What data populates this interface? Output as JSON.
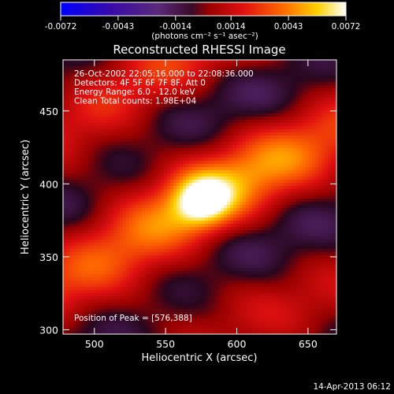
{
  "colorbar": {
    "tick_labels": [
      "-0.0072",
      "-0.0043",
      "-0.0014",
      "0.0014",
      "0.0043",
      "0.0072"
    ],
    "tick_values": [
      -0.0072,
      -0.0043,
      -0.0014,
      0.0014,
      0.0043,
      0.0072
    ],
    "range": [
      -0.0072,
      0.0072
    ],
    "unit_label": "(photons cm⁻² s⁻¹ asec⁻²)",
    "colormap": "rainbow-heat: blue-purple-red-orange-yellow-white"
  },
  "chart_data": {
    "type": "heatmap",
    "title": "Reconstructed RHESSI Image",
    "xlabel": "Heliocentric X (arcsec)",
    "ylabel": "Heliocentric Y (arcsec)",
    "xlim": [
      478,
      670
    ],
    "ylim": [
      297,
      485
    ],
    "x_ticks": [
      500,
      550,
      600,
      650
    ],
    "y_ticks": [
      300,
      350,
      400,
      450
    ],
    "annotations": [
      "26-Oct-2002 22:05:16.000 to 22:08:36.000",
      "Detectors: 4F 5F 6F 7F 8F, Att 0",
      "Energy Range: 6.0 - 12.0 keV",
      "Clean    Total counts: 1.98E+04"
    ],
    "peak_label": "Position of Peak = [576,388]",
    "peak": [
      576,
      388
    ],
    "peak_value": 0.0072
  },
  "footer": {
    "timestamp": "14-Apr-2013 06:12"
  }
}
